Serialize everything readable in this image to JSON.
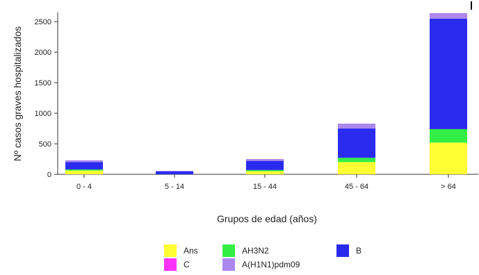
{
  "chart_data": {
    "type": "bar",
    "stacked": true,
    "categories": [
      "0 - 4",
      "5 - 14",
      "15 - 44",
      "45 - 64",
      "> 64"
    ],
    "series": [
      {
        "name": "Ans",
        "color": "#ffff33",
        "values": [
          60,
          0,
          50,
          200,
          520
        ]
      },
      {
        "name": "AH3N2",
        "color": "#33ee44",
        "values": [
          20,
          0,
          20,
          70,
          220
        ]
      },
      {
        "name": "B",
        "color": "#2b2bef",
        "values": [
          120,
          50,
          150,
          480,
          1810
        ]
      },
      {
        "name": "C",
        "color": "#ff33ff",
        "values": [
          0,
          0,
          0,
          0,
          0
        ]
      },
      {
        "name": "A(H1N1)pdm09",
        "color": "#aa88ee",
        "values": [
          30,
          5,
          30,
          80,
          90
        ]
      }
    ],
    "xlabel": "Grupos de edad (años)",
    "ylabel": "Nº casos graves hospitalizados",
    "ylim": [
      0,
      2650
    ],
    "yticks": [
      0,
      500,
      1000,
      1500,
      2000,
      2500
    ],
    "grid": false,
    "legend_position": "bottom"
  },
  "legend": {
    "items": [
      {
        "label": "Ans",
        "color": "#ffff33"
      },
      {
        "label": "AH3N2",
        "color": "#33ee44"
      },
      {
        "label": "B",
        "color": "#2b2bef"
      },
      {
        "label": "C",
        "color": "#ff33ff"
      },
      {
        "label": "A(H1N1)pdm09",
        "color": "#aa88ee"
      }
    ]
  }
}
